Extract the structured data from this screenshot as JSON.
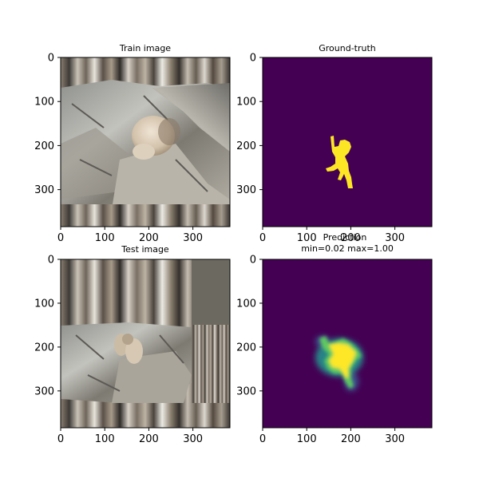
{
  "chart_data": [
    {
      "type": "image",
      "panel": "train",
      "title": "Train image",
      "xlim": [
        0,
        384
      ],
      "ylim": [
        384,
        0
      ],
      "xticks": [
        0,
        100,
        200,
        300
      ],
      "yticks": [
        0,
        100,
        200,
        300
      ],
      "xtick_labels": [
        "0",
        "100",
        "200",
        "300"
      ],
      "ytick_labels": [
        "0",
        "100",
        "200",
        "300"
      ]
    },
    {
      "type": "image",
      "panel": "ground-truth",
      "title": "Ground-truth",
      "xlim": [
        0,
        384
      ],
      "ylim": [
        384,
        0
      ],
      "xticks": [
        0,
        100,
        200,
        300
      ],
      "yticks": [
        0,
        100,
        200,
        300
      ],
      "xtick_labels": [
        "0",
        "100",
        "200",
        "300"
      ],
      "ytick_labels": [
        "0",
        "100",
        "200",
        "300"
      ],
      "colors": {
        "background": "#440154",
        "foreground": "#fde725"
      }
    },
    {
      "type": "image",
      "panel": "test",
      "title": "Test image",
      "xlim": [
        0,
        384
      ],
      "ylim": [
        384,
        0
      ],
      "xticks": [
        0,
        100,
        200,
        300
      ],
      "yticks": [
        0,
        100,
        200,
        300
      ],
      "xtick_labels": [
        "0",
        "100",
        "200",
        "300"
      ],
      "ytick_labels": [
        "0",
        "100",
        "200",
        "300"
      ]
    },
    {
      "type": "heatmap",
      "panel": "prediction",
      "title": "Prediction",
      "subtitle": "min=0.02 max=1.00",
      "value_min": 0.02,
      "value_max": 1.0,
      "xlim": [
        0,
        384
      ],
      "ylim": [
        384,
        0
      ],
      "xticks": [
        0,
        100,
        200,
        300
      ],
      "yticks": [
        0,
        100,
        200,
        300
      ],
      "xtick_labels": [
        "0",
        "100",
        "200",
        "300"
      ],
      "ytick_labels": [
        "0",
        "100",
        "200",
        "300"
      ],
      "colormap": "viridis",
      "colors": {
        "low": "#440154",
        "mid_low": "#3b528b",
        "mid": "#21918c",
        "mid_high": "#5ec962",
        "high": "#fde725"
      }
    }
  ]
}
